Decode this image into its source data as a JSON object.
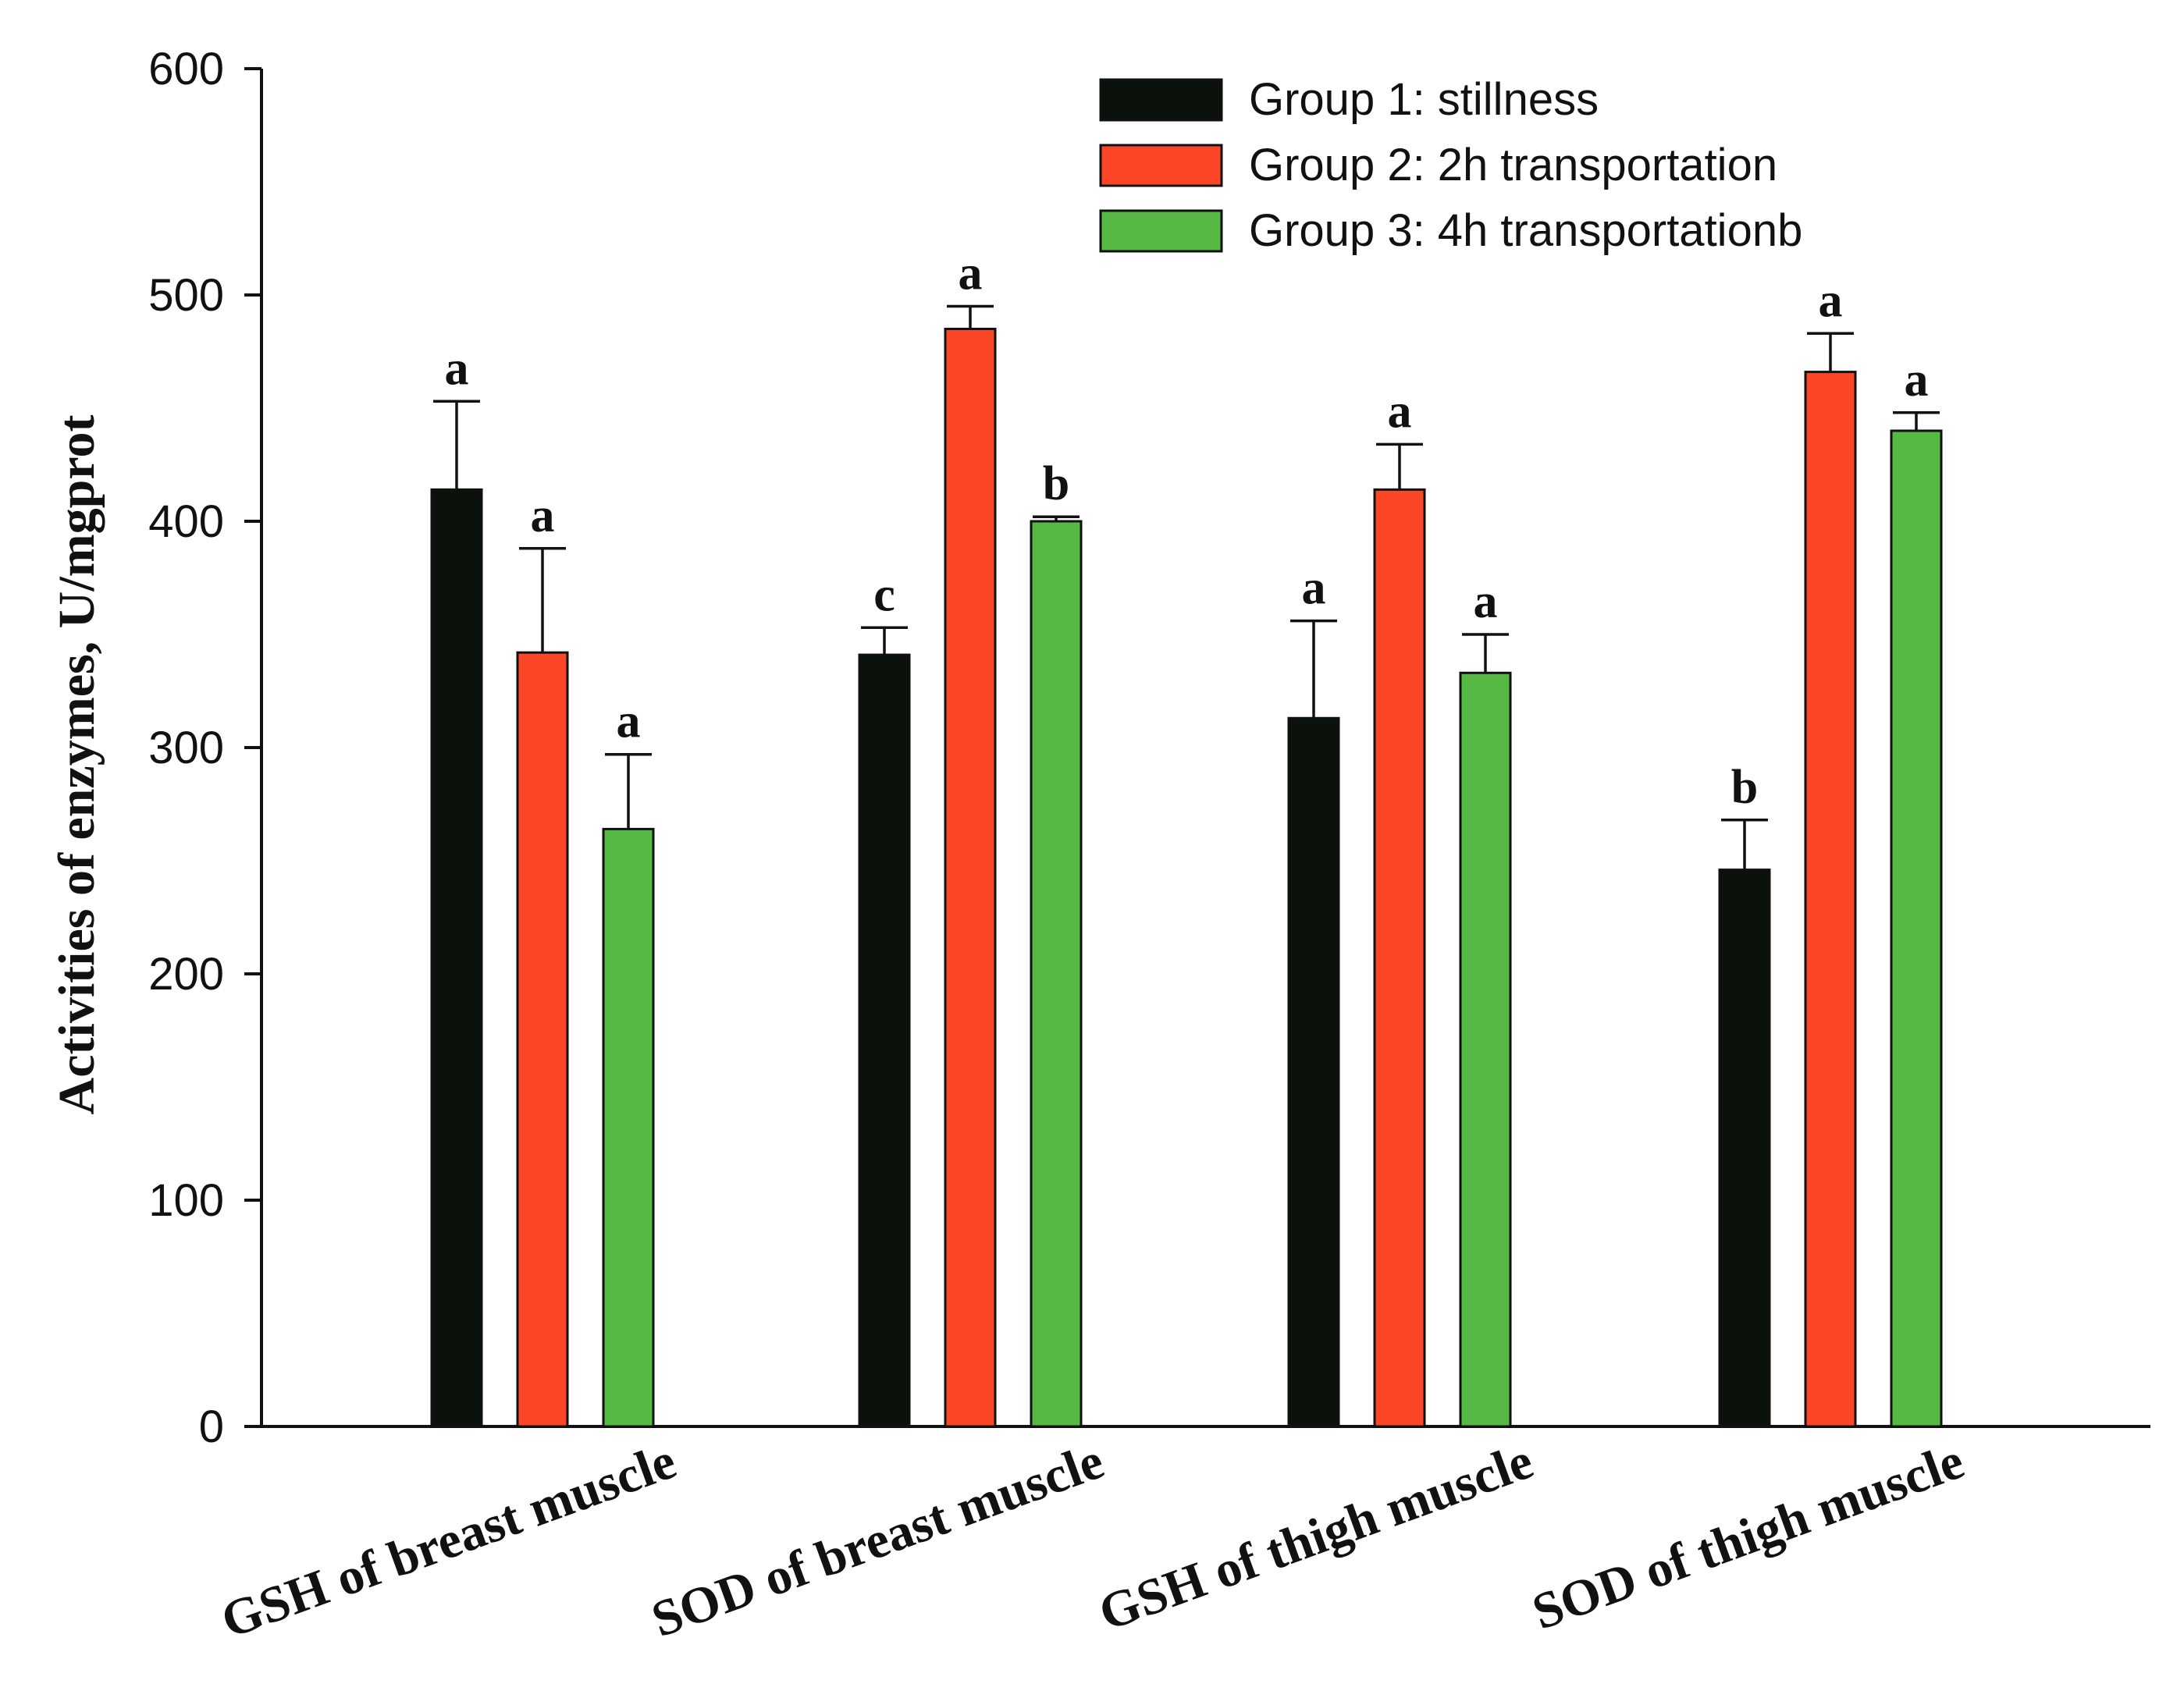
{
  "chart_data": {
    "type": "bar",
    "title": "",
    "xlabel": "",
    "ylabel": "Activities of enzymes, U/mgprot",
    "ylim": [
      0,
      600
    ],
    "yticks": [
      0,
      100,
      200,
      300,
      400,
      500,
      600
    ],
    "categories": [
      "GSH of breast muscle",
      "SOD of breast muscle",
      "GSH of thigh muscle",
      "SOD of thigh muscle"
    ],
    "series": [
      {
        "name": "Group 1: stillness",
        "color": "#0b110b",
        "values": [
          414,
          341,
          313,
          246
        ],
        "errors": [
          39,
          12,
          43,
          22
        ],
        "labels": [
          "a",
          "c",
          "a",
          "b"
        ]
      },
      {
        "name": "Group 2: 2h transportation",
        "color": "#fb4628",
        "values": [
          342,
          485,
          414,
          466
        ],
        "errors": [
          46,
          10,
          20,
          17
        ],
        "labels": [
          "a",
          "a",
          "a",
          "a"
        ]
      },
      {
        "name": "Group 3: 4h transportationb",
        "color": "#55b944",
        "values": [
          264,
          400,
          333,
          440
        ],
        "errors": [
          33,
          2,
          17,
          8
        ],
        "labels": [
          "a",
          "b",
          "a",
          "a"
        ]
      }
    ],
    "legend_position": "top-right",
    "grid": false
  }
}
